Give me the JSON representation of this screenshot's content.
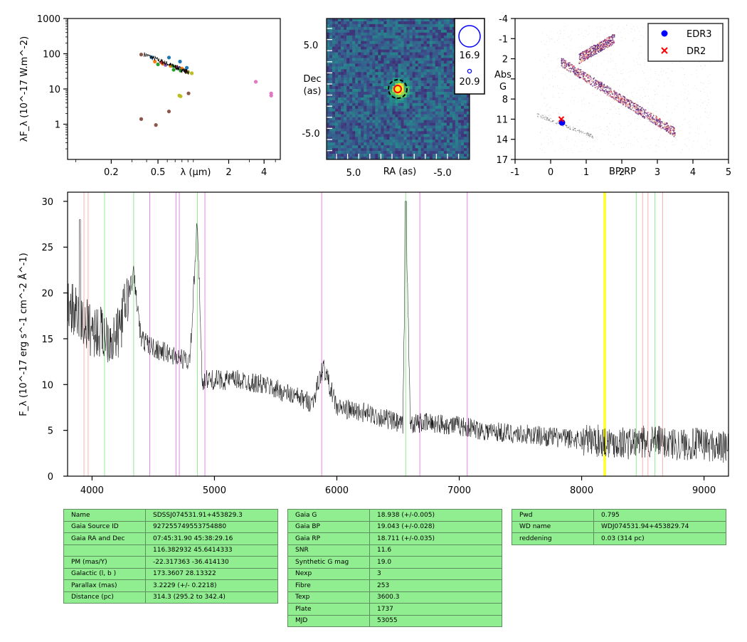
{
  "chart_data": [
    {
      "type": "scatter",
      "panel": "sed",
      "xlabel": "λ (μm)",
      "ylabel": "λF_λ (10^-17 W.m^-2)",
      "xscale": "log",
      "yscale": "log",
      "xlim": [
        0.085,
        5.5
      ],
      "ylim": [
        0.1,
        1000
      ],
      "xticklabels": [
        "0.2",
        "0.5",
        "2",
        "4"
      ],
      "yticklabels": [
        "1",
        "10",
        "100",
        "1000"
      ],
      "series": [
        {
          "color": "#8c564b",
          "points": [
            [
              0.36,
              95
            ],
            [
              0.36,
              1.4
            ],
            [
              0.48,
              0.95
            ],
            [
              0.62,
              2.3
            ],
            [
              0.91,
              7.5
            ]
          ]
        },
        {
          "color": "#1f77b4",
          "points": [
            [
              0.44,
              80
            ],
            [
              0.62,
              78
            ],
            [
              0.77,
              60
            ],
            [
              0.88,
              40
            ]
          ]
        },
        {
          "color": "#ff7f0e",
          "points": [
            [
              0.47,
              60
            ],
            [
              0.55,
              52
            ],
            [
              0.64,
              45
            ],
            [
              0.8,
              38
            ]
          ]
        },
        {
          "color": "#2ca02c",
          "points": [
            [
              0.5,
              50
            ],
            [
              0.67,
              45
            ],
            [
              0.68,
              35
            ],
            [
              0.78,
              33
            ]
          ]
        },
        {
          "color": "#d62728",
          "points": [
            [
              0.54,
              56
            ],
            [
              0.72,
              42
            ],
            [
              0.86,
              32
            ]
          ]
        },
        {
          "color": "#9467bd",
          "points": [
            [
              0.58,
              48
            ],
            [
              0.74,
              40
            ]
          ]
        },
        {
          "color": "#bcbd22",
          "points": [
            [
              0.76,
              6.5
            ],
            [
              0.78,
              6.2
            ],
            [
              0.9,
              30
            ],
            [
              0.97,
              28
            ]
          ]
        },
        {
          "color": "#e377c2",
          "points": [
            [
              3.4,
              16
            ],
            [
              4.6,
              7.5
            ],
            [
              4.6,
              6.5
            ]
          ]
        }
      ]
    },
    {
      "type": "heatmap",
      "panel": "image",
      "xlabel": "RA (as)",
      "ylabel": "Dec (as)",
      "xticklabels": [
        "5.0",
        "-5.0"
      ],
      "yticklabels": [
        "5.0",
        "-5.0"
      ],
      "legend": [
        {
          "label": "16.9",
          "color": "#0000ff"
        },
        {
          "label": "20.9",
          "color": "#0000ff"
        }
      ]
    },
    {
      "type": "scatter",
      "panel": "hr",
      "xlabel": "BP-RP",
      "ylabel": "Abs G",
      "xlim": [
        -1,
        5
      ],
      "ylim": [
        17,
        -4
      ],
      "xticklabels": [
        "-1",
        "0",
        "1",
        "2",
        "3",
        "4",
        "5"
      ],
      "yticklabels": [
        "-4",
        "-1",
        "2",
        "5",
        "8",
        "11",
        "14",
        "17"
      ],
      "series": [
        {
          "name": "EDR3",
          "color": "#0000ff",
          "marker": "circle",
          "points": [
            [
              0.32,
              11.5
            ]
          ]
        },
        {
          "name": "DR2",
          "color": "#ff0000",
          "marker": "x",
          "points": [
            [
              0.3,
              11.0
            ]
          ]
        }
      ]
    },
    {
      "type": "line",
      "panel": "spectrum",
      "xlabel": "",
      "ylabel": "F_λ (10^-17 erg s^-1 cm^-2 Å^-1)",
      "xlim": [
        3800,
        9200
      ],
      "ylim": [
        0,
        31
      ],
      "xticklabels": [
        "4000",
        "5000",
        "6000",
        "7000",
        "8000",
        "9000"
      ],
      "yticklabels": [
        "0",
        "5",
        "10",
        "15",
        "20",
        "25",
        "30"
      ],
      "x": [
        3800,
        3900,
        4000,
        4100,
        4200,
        4340,
        4400,
        4500,
        4600,
        4700,
        4800,
        4860,
        4900,
        5000,
        5200,
        5400,
        5600,
        5800,
        5890,
        6000,
        6200,
        6400,
        6540,
        6563,
        6600,
        6800,
        7000,
        7200,
        7400,
        7600,
        7800,
        8000,
        8200,
        8400,
        8600,
        8800,
        9000,
        9200
      ],
      "y": [
        19,
        17,
        16,
        15.5,
        15,
        22,
        15,
        14,
        13.5,
        13,
        12.5,
        28,
        10.5,
        10.5,
        10.5,
        10,
        9,
        8,
        12,
        7.5,
        7,
        6.3,
        5.5,
        30,
        5.8,
        5.8,
        5.5,
        5,
        4.7,
        4.5,
        4.2,
        4,
        3.8,
        3.6,
        3.8,
        3.5,
        3.5,
        3
      ],
      "lines": [
        {
          "color": "#ffb0b0",
          "x": [
            3934,
            3968,
            8498,
            8542,
            8662
          ]
        },
        {
          "color": "#90ee90",
          "x": [
            4102,
            4340,
            4861,
            6563,
            8446,
            8598
          ]
        },
        {
          "color": "#ee82ee",
          "x": [
            4471,
            4686,
            4713,
            4922,
            5876,
            6678,
            7065
          ]
        },
        {
          "color": "#ffff00",
          "x": [
            8183,
            8195
          ]
        }
      ]
    }
  ],
  "tables": [
    [
      [
        "Name",
        "SDSSJ074531.91+453829.3"
      ],
      [
        "Gaia Source ID",
        "927255749553754880"
      ],
      [
        "Gaia RA and Dec",
        "07:45:31.90    45:38:29.16"
      ],
      [
        "",
        "116.382932    45.6414333"
      ],
      [
        "PM (mas/Y)",
        "-22.317363    -36.414130"
      ],
      [
        "Galactic (l, b )",
        "173.3607    28.13322"
      ],
      [
        "Parallax (mas)",
        "3.2229 (+/- 0.2218)"
      ],
      [
        "Distance (pc)",
        "314.3 (295.2 to 342.4)"
      ]
    ],
    [
      [
        "Gaia G",
        "18.938 (+/-0.005)"
      ],
      [
        "Gaia BP",
        "19.043 (+/-0.028)"
      ],
      [
        "Gaia RP",
        "18.711 (+/-0.035)"
      ],
      [
        "SNR",
        "11.6"
      ],
      [
        "Synthetic G mag",
        "19.0"
      ],
      [
        "Nexp",
        "3"
      ],
      [
        "Fibre",
        "253"
      ],
      [
        "Texp",
        "3600.3"
      ],
      [
        "Plate",
        "1737"
      ],
      [
        "MJD",
        "53055"
      ]
    ],
    [
      [
        "Pwd",
        "0.795"
      ],
      [
        "WD name",
        "WDJ074531.94+453829.74"
      ],
      [
        "reddening",
        "0.03 (314 pc)"
      ]
    ]
  ]
}
